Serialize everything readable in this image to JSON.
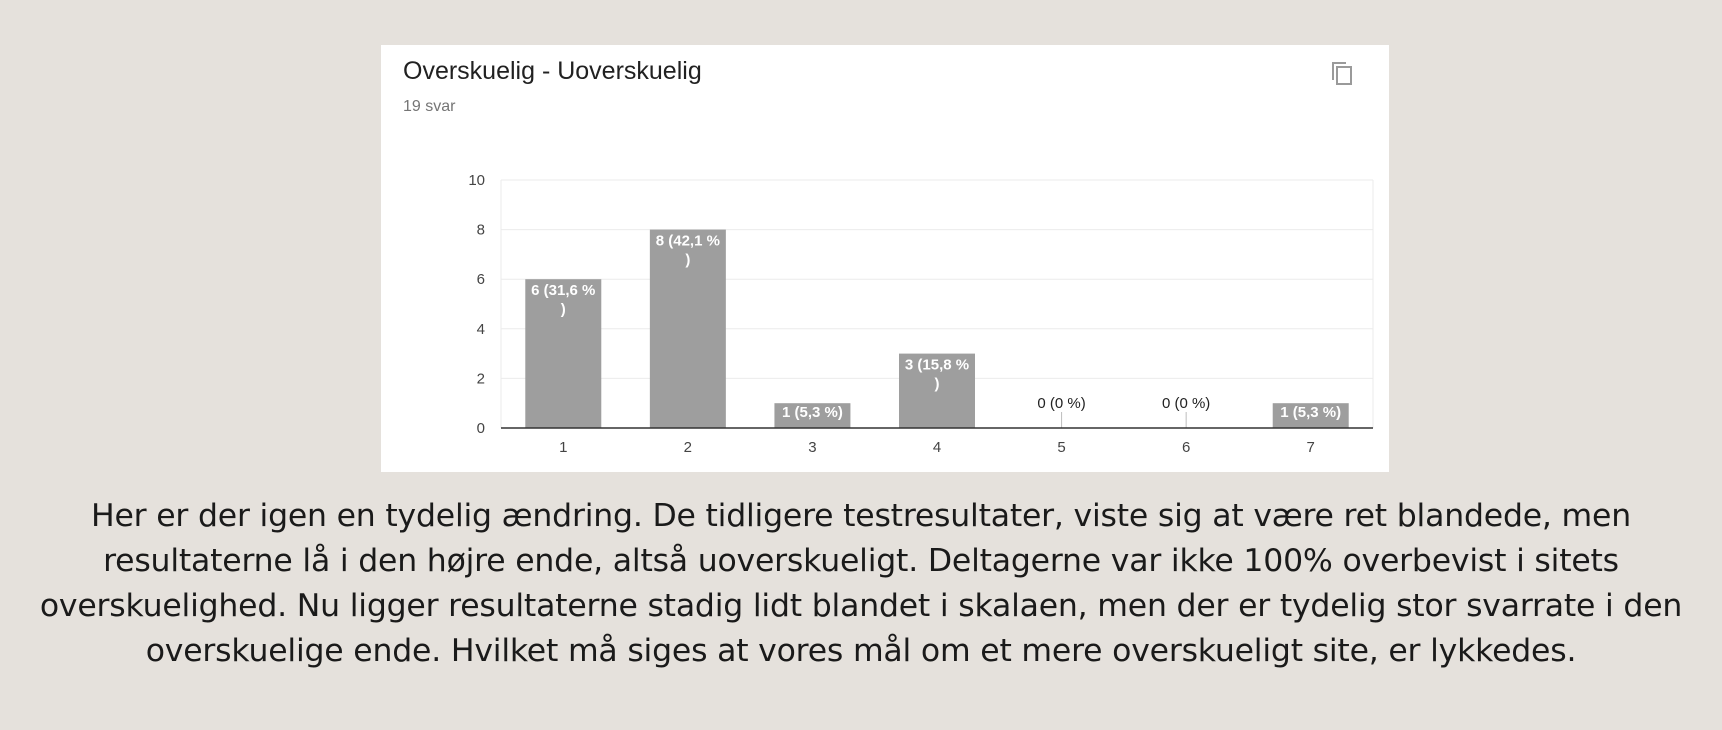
{
  "card": {
    "title": "Overskuelig - Uoverskuelig",
    "subtitle": "19 svar",
    "copy_icon": "copy-icon"
  },
  "chart_data": {
    "type": "bar",
    "title": "Overskuelig - Uoverskuelig",
    "subtitle": "19 svar",
    "categories": [
      "1",
      "2",
      "3",
      "4",
      "5",
      "6",
      "7"
    ],
    "values": [
      6,
      8,
      1,
      3,
      0,
      0,
      1
    ],
    "data_labels": [
      [
        "6 (31,6 %",
        ")"
      ],
      [
        "8 (42,1 %",
        ")"
      ],
      [
        "1 (5,3 %)"
      ],
      [
        "3 (15,8 %",
        ")"
      ],
      [
        "0 (0 %)"
      ],
      [
        "0 (0 %)"
      ],
      [
        "1 (5,3 %)"
      ]
    ],
    "ylim": [
      0,
      10
    ],
    "yticks": [
      0,
      2,
      4,
      6,
      8,
      10
    ],
    "xlabel": "",
    "ylabel": "",
    "grid": true,
    "bar_color": "#9e9e9e",
    "grid_color": "#ebebeb",
    "axis_color": "#333333"
  },
  "caption": "Her er der igen en tydelig ændring. De tidligere testresultater, viste sig at være ret blandede, men resultaterne lå i den højre ende, altså uoverskueligt. Deltagerne var ikke 100% overbevist i sitets overskuelighed. Nu ligger resultaterne stadig lidt blandet i skalaen, men der er tydelig stor svarrate i den overskuelige ende. Hvilket må siges at vores mål om et mere overskueligt site, er lykkedes."
}
